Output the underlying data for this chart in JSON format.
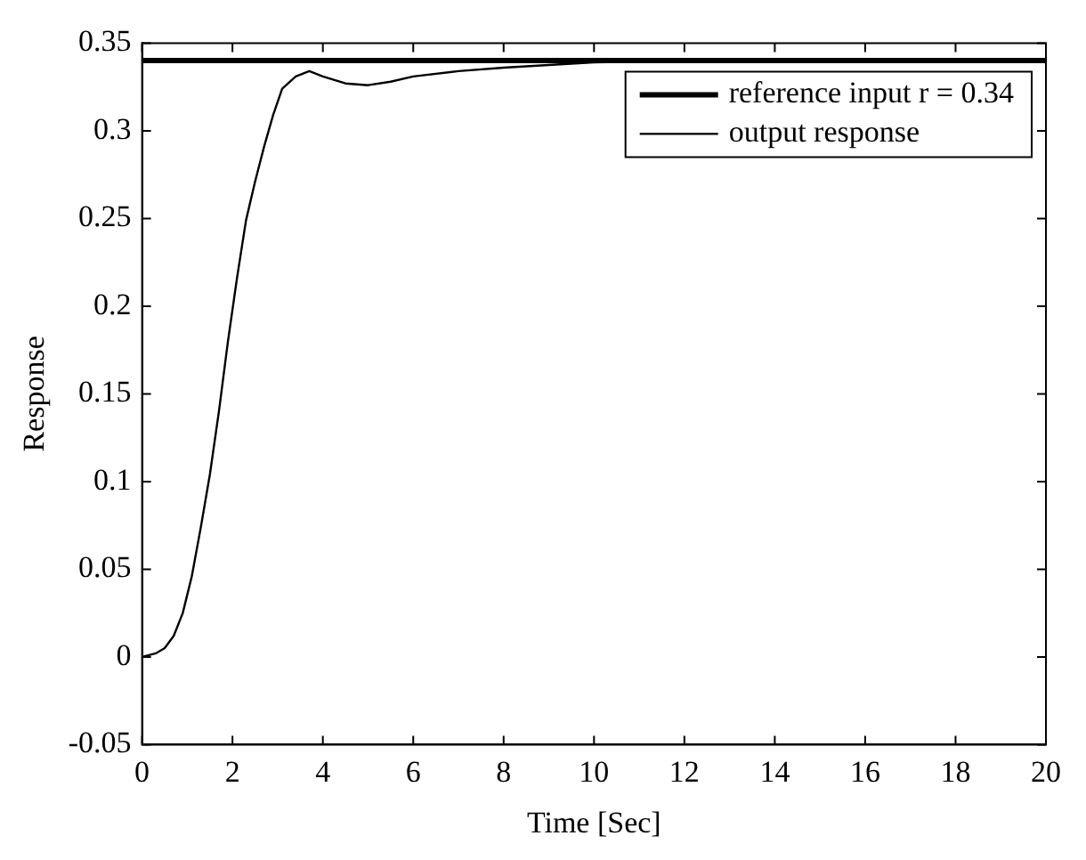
{
  "chart_data": {
    "type": "line",
    "xlabel": "Time [Sec]",
    "ylabel": "Response",
    "xlim": [
      0,
      20
    ],
    "xticks": [
      0,
      2,
      4,
      6,
      8,
      10,
      12,
      14,
      16,
      18,
      20
    ],
    "ylim": [
      -0.05,
      0.35
    ],
    "yticks": [
      -0.05,
      0,
      0.05,
      0.1,
      0.15,
      0.2,
      0.25,
      0.3,
      0.35
    ],
    "grid": false,
    "legend": "top right",
    "marker": "none",
    "line_style": "solid",
    "series": [
      {
        "name": "reference input r = 0.34",
        "color": "#000000",
        "x": [
          0,
          20
        ],
        "values": [
          0.34,
          0.34
        ]
      },
      {
        "name": "output response",
        "color": "#000000",
        "x": [
          0,
          0.3,
          0.5,
          0.7,
          0.9,
          1.1,
          1.3,
          1.5,
          1.7,
          1.9,
          2.1,
          2.3,
          2.5,
          2.7,
          2.9,
          3.1,
          3.4,
          3.7,
          4.0,
          4.5,
          5.0,
          5.5,
          6.0,
          7.0,
          8.0,
          10,
          12,
          14,
          20
        ],
        "values": [
          0,
          0.002,
          0.005,
          0.012,
          0.025,
          0.046,
          0.074,
          0.104,
          0.14,
          0.18,
          0.216,
          0.249,
          0.271,
          0.291,
          0.309,
          0.324,
          0.331,
          0.334,
          0.331,
          0.327,
          0.326,
          0.328,
          0.331,
          0.334,
          0.336,
          0.339,
          0.34,
          0.34,
          0.34
        ]
      }
    ]
  }
}
